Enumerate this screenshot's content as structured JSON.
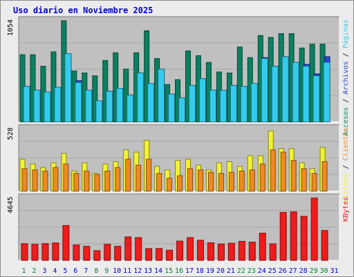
{
  "chart_data": {
    "title": "Uso diario en Noviembre 2025",
    "days": [
      "1",
      "2",
      "3",
      "4",
      "5",
      "6",
      "7",
      "8",
      "9",
      "10",
      "11",
      "12",
      "13",
      "14",
      "15",
      "16",
      "17",
      "18",
      "19",
      "20",
      "21",
      "22",
      "23",
      "24",
      "25",
      "26",
      "27",
      "28",
      "29",
      "30",
      "31"
    ],
    "weekend_days": [
      "1",
      "2",
      "8",
      "9",
      "15",
      "16",
      "22",
      "23",
      "29",
      "30"
    ],
    "panels": [
      {
        "type": "bar",
        "tick_label": "1054",
        "ylim": [
          0,
          1054
        ],
        "series": [
          {
            "name": "Accesos",
            "color": "#0b8060",
            "values": [
              700,
              700,
              580,
              730,
              1054,
              530,
              510,
              480,
              640,
              720,
              550,
              720,
              950,
              660,
              390,
              440,
              740,
              690,
              620,
              520,
              510,
              780,
              670,
              900,
              880,
              920,
              920,
              770,
              810,
              810,
              0
            ]
          },
          {
            "name": "Archivos",
            "color": "#2147cc",
            "values": [
              370,
              330,
              310,
              360,
              710,
              430,
              330,
              220,
              320,
              350,
              280,
              510,
              400,
              550,
              290,
              250,
              380,
              450,
              330,
              330,
              380,
              370,
              400,
              670,
              580,
              680,
              620,
              600,
              500,
              680,
              0
            ]
          },
          {
            "name": "Páginas",
            "color": "#33ccee",
            "values": [
              370,
              330,
              310,
              360,
              710,
              410,
              330,
              220,
              320,
              350,
              280,
              510,
              400,
              550,
              290,
              250,
              380,
              450,
              330,
              330,
              380,
              370,
              400,
              660,
              580,
              680,
              620,
              580,
              480,
              620,
              0
            ]
          }
        ]
      },
      {
        "type": "bar",
        "tick_label": "528",
        "ylim": [
          0,
          528
        ],
        "series": [
          {
            "name": "Visitas",
            "color": "#f2f233",
            "values": [
              270,
              230,
              200,
              240,
              320,
              170,
              240,
              150,
              230,
              250,
              350,
              330,
              430,
              210,
              180,
              260,
              270,
              220,
              180,
              240,
              250,
              210,
              300,
              300,
              510,
              360,
              360,
              240,
              190,
              370,
              0
            ]
          },
          {
            "name": "Clientes",
            "color": "#f08a20",
            "values": [
              190,
              180,
              170,
              200,
              230,
              150,
              170,
              140,
              170,
              200,
              270,
              220,
              270,
              150,
              110,
              130,
              190,
              180,
              160,
              150,
              160,
              170,
              180,
              230,
              350,
              330,
              260,
              190,
              150,
              250,
              0
            ]
          }
        ]
      },
      {
        "type": "bar",
        "tick_label": "4645",
        "ylim": [
          0,
          4645
        ],
        "series": [
          {
            "name": "KBytes",
            "color": "#ee1c1c",
            "values": [
              1250,
              1200,
              1250,
              1300,
              2600,
              1150,
              1050,
              720,
              1200,
              1050,
              1750,
              1700,
              880,
              890,
              760,
              1440,
              1700,
              1500,
              1310,
              1220,
              1280,
              1420,
              1360,
              2030,
              1230,
              3580,
              3620,
              3290,
              4645,
              2230,
              0
            ]
          }
        ]
      }
    ],
    "legend": {
      "top": [
        {
          "name": "Accesos",
          "color": "#0b8060"
        },
        {
          "sep": "/"
        },
        {
          "name": "Archivos",
          "color": "#2147cc"
        },
        {
          "sep": "/"
        },
        {
          "name": "Páginas",
          "color": "#33ccee"
        }
      ],
      "middle": [
        {
          "name": "Visitas",
          "color": "#f2f233"
        },
        {
          "sep": "/"
        },
        {
          "name": "Clientes",
          "color": "#f08a20"
        }
      ],
      "bottom": [
        {
          "name": "KBytes",
          "color": "#ee1c1c"
        }
      ]
    }
  },
  "colors": {
    "title": "#0000cc",
    "plot_bg": "#c0c0c0",
    "frame_bg": "#ececec",
    "weekend_label": "#00802f",
    "weekday_label": "#0000cc"
  }
}
